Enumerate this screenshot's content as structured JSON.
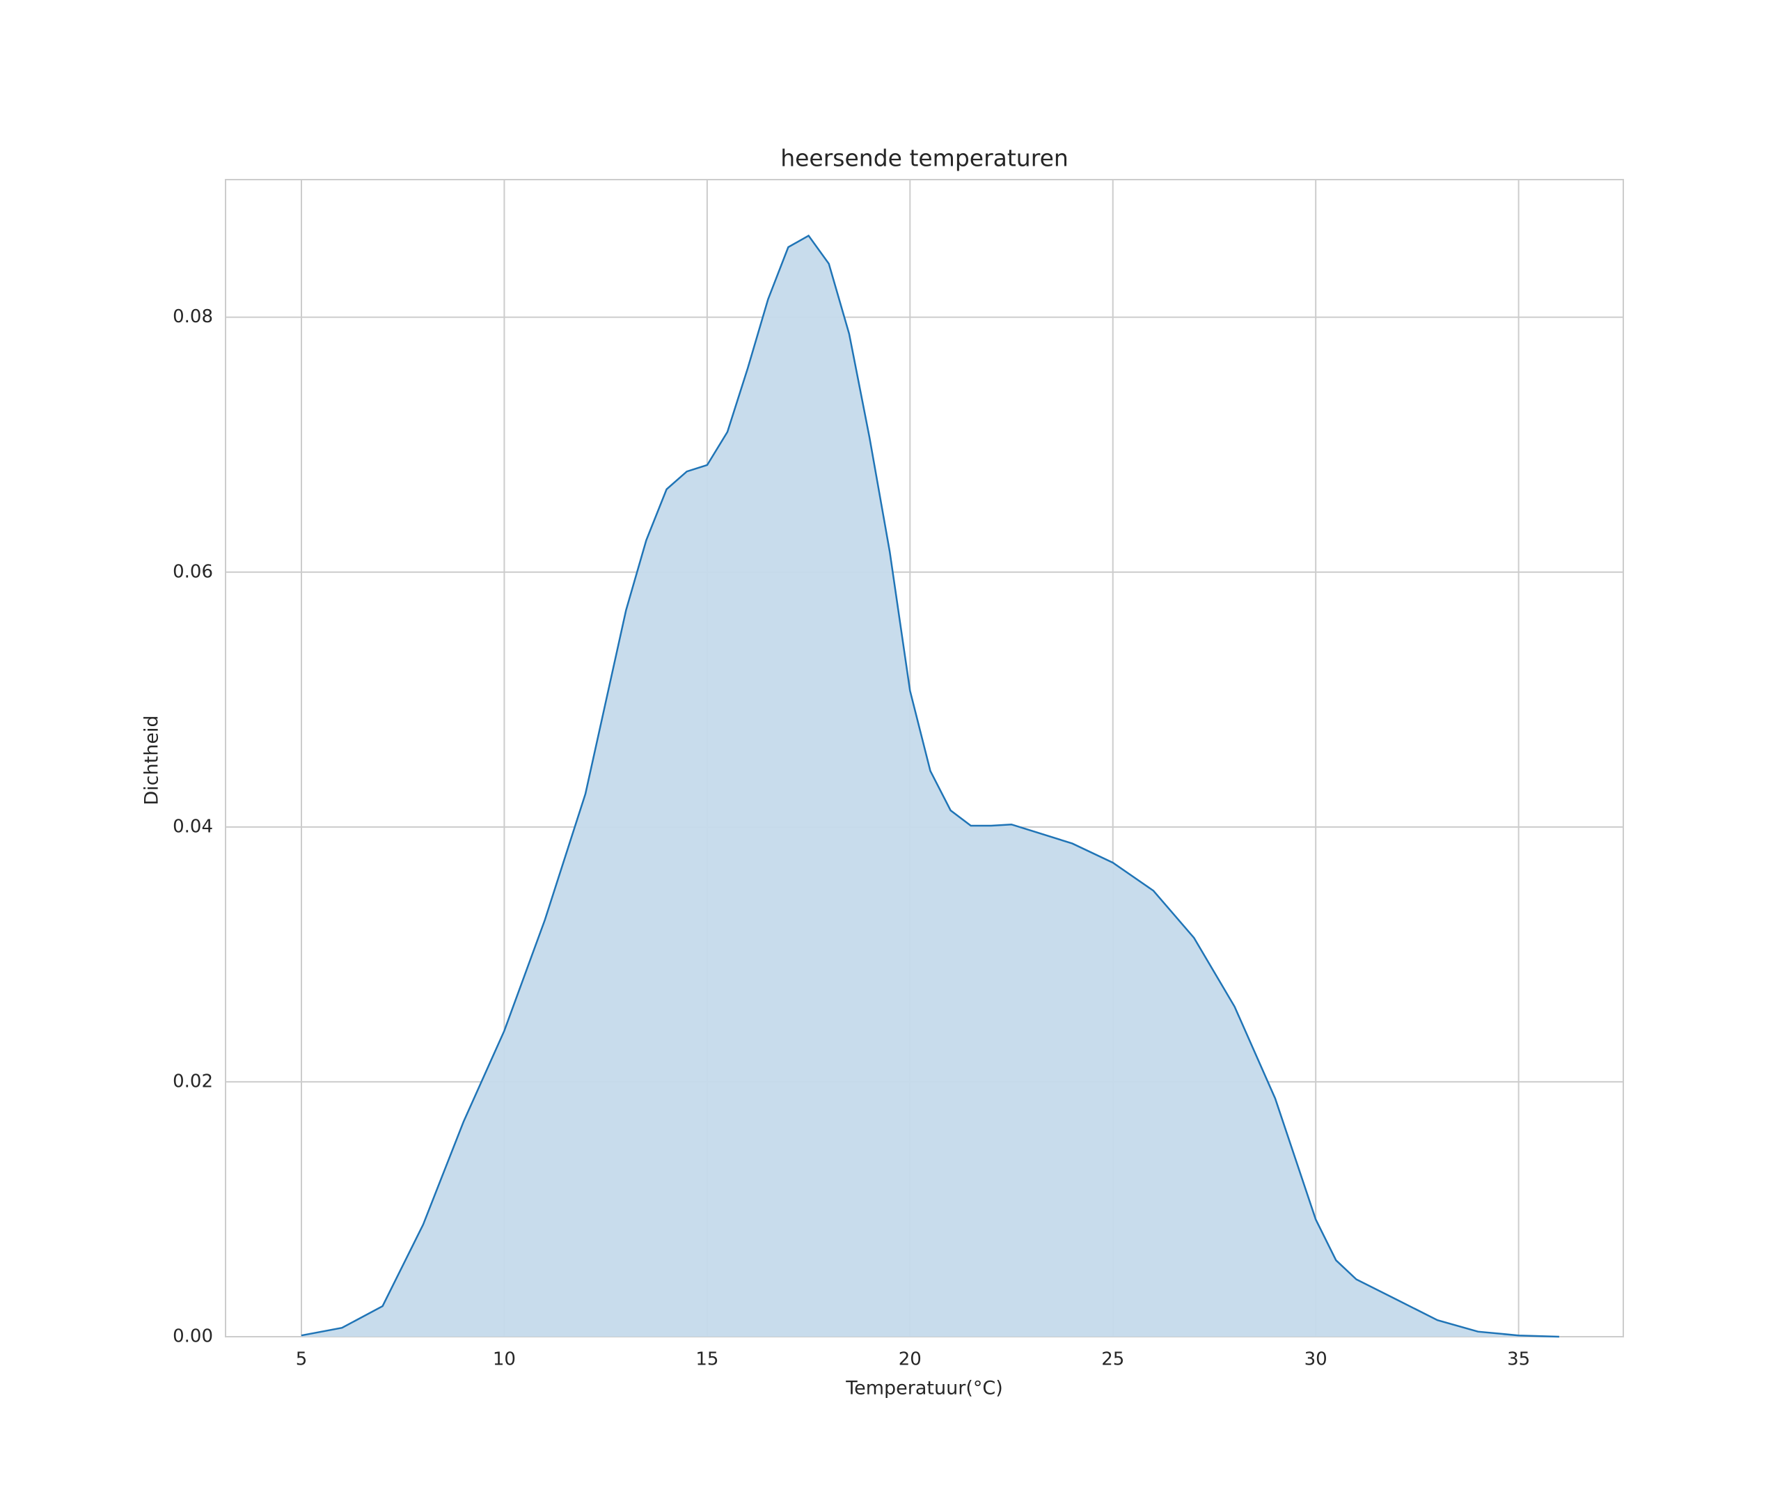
{
  "chart_data": {
    "type": "kde",
    "title": "heersende temperaturen",
    "xlabel": "Temperatuur(°C)",
    "ylabel": "Dichtheid",
    "x": [
      5,
      6,
      7,
      8,
      9,
      10,
      11,
      12,
      13,
      13.5,
      14,
      14.5,
      15,
      15.5,
      16,
      16.5,
      17,
      17.5,
      18,
      18.5,
      19,
      19.5,
      20,
      20.5,
      21,
      21.5,
      22,
      22.5,
      23,
      24,
      25,
      26,
      27,
      28,
      29,
      30,
      30.5,
      31,
      32,
      33,
      34,
      35,
      36
    ],
    "values": [
      0.0001,
      0.0007,
      0.0024,
      0.0088,
      0.0169,
      0.024,
      0.0327,
      0.0426,
      0.057,
      0.0625,
      0.0665,
      0.0679,
      0.0684,
      0.071,
      0.076,
      0.0814,
      0.0855,
      0.0864,
      0.0842,
      0.0787,
      0.0706,
      0.0616,
      0.0507,
      0.0444,
      0.0413,
      0.0401,
      0.0401,
      0.0402,
      0.0397,
      0.0387,
      0.0372,
      0.035,
      0.0313,
      0.0259,
      0.0187,
      0.0092,
      0.006,
      0.0045,
      0.0029,
      0.0013,
      0.0004,
      0.0001,
      0
    ],
    "color": "#1f74b6",
    "fill_color": "#c5daeb",
    "xlim": [
      3.13,
      37.58
    ],
    "ylim": [
      0,
      0.0908
    ],
    "xticks": [
      5,
      10,
      15,
      20,
      25,
      30,
      35
    ],
    "yticks": [
      {
        "value": 0,
        "label": "0.00"
      },
      {
        "value": 0.02,
        "label": "0.02"
      },
      {
        "value": 0.04,
        "label": "0.04"
      },
      {
        "value": 0.06,
        "label": "0.06"
      },
      {
        "value": 0.08,
        "label": "0.08"
      }
    ],
    "grid": true
  }
}
